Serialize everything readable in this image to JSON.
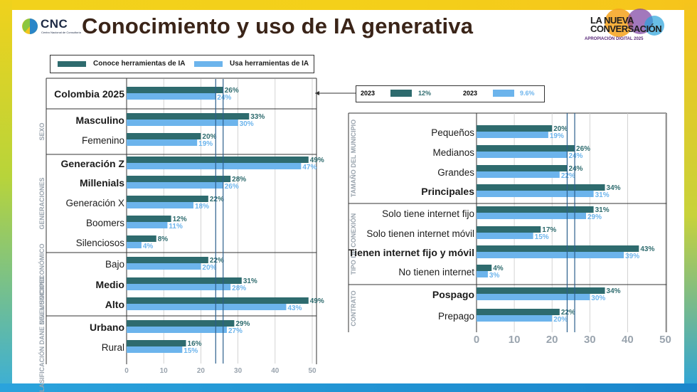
{
  "header": {
    "logo_text": "CNC",
    "logo_sub": "Centro Nacional de Consultoría",
    "title": "Conocimiento y uso de IA generativa",
    "badge_line1": "LA NUEVA",
    "badge_line2": "CONVERSACIÓN",
    "badge_line3": "APROPIACIÓN DIGITAL 2025"
  },
  "legend": {
    "series1": "Conoce herramientas de IA",
    "series2": "Usa herramientas de IA"
  },
  "reference": {
    "year1": "2023",
    "val1": "12%",
    "year2": "2023",
    "val2": "9.6%"
  },
  "colors": {
    "dark": "#2e6b6e",
    "light": "#6cb4ec",
    "ref_line": "#2b5f8c"
  },
  "chart_data": [
    {
      "type": "bar",
      "orientation": "horizontal",
      "xlim": [
        0,
        50
      ],
      "xticks": [
        "0",
        "10",
        "20",
        "30",
        "40",
        "50"
      ],
      "reference_lines": [
        24,
        26
      ],
      "series": [
        {
          "name": "Conoce herramientas de IA"
        },
        {
          "name": "Usa herramientas de IA"
        }
      ],
      "groups": [
        {
          "label": "",
          "rows": [
            {
              "label": "Colombia 2025",
              "bold": true,
              "v1": 26,
              "v2": 24
            }
          ]
        },
        {
          "label": "SEXO",
          "rows": [
            {
              "label": "Masculino",
              "bold": true,
              "v1": 33,
              "v2": 30
            },
            {
              "label": "Femenino",
              "bold": false,
              "v1": 20,
              "v2": 19
            }
          ]
        },
        {
          "label": "GENERACIONES",
          "rows": [
            {
              "label": "Generación Z",
              "bold": true,
              "v1": 49,
              "v2": 47
            },
            {
              "label": "Millenials",
              "bold": true,
              "v1": 28,
              "v2": 26
            },
            {
              "label": "Generación X",
              "bold": false,
              "v1": 22,
              "v2": 18
            },
            {
              "label": "Boomers",
              "bold": false,
              "v1": 12,
              "v2": 11
            },
            {
              "label": "Silenciosos",
              "bold": false,
              "v1": 8,
              "v2": 4
            }
          ]
        },
        {
          "label": "NIVEL SOCIOECONÓMICO",
          "rows": [
            {
              "label": "Bajo",
              "bold": false,
              "v1": 22,
              "v2": 20
            },
            {
              "label": "Medio",
              "bold": true,
              "v1": 31,
              "v2": 28
            },
            {
              "label": "Alto",
              "bold": true,
              "v1": 49,
              "v2": 43
            }
          ]
        },
        {
          "label": "CLASIFICACIÓN DANE DEL MUNICIPIO",
          "rows": [
            {
              "label": "Urbano",
              "bold": true,
              "v1": 29,
              "v2": 27
            },
            {
              "label": "Rural",
              "bold": false,
              "v1": 16,
              "v2": 15
            }
          ]
        }
      ]
    },
    {
      "type": "bar",
      "orientation": "horizontal",
      "xlim": [
        0,
        50
      ],
      "xticks": [
        "0",
        "10",
        "20",
        "30",
        "40",
        "50"
      ],
      "reference_lines": [
        24,
        26
      ],
      "series": [
        {
          "name": "Conoce herramientas de IA"
        },
        {
          "name": "Usa herramientas de IA"
        }
      ],
      "groups": [
        {
          "label": "TAMAÑO DEL MUNICIPIO",
          "rows": [
            {
              "label": "Pequeños",
              "bold": false,
              "v1": 20,
              "v2": 19
            },
            {
              "label": "Medianos",
              "bold": false,
              "v1": 26,
              "v2": 24
            },
            {
              "label": "Grandes",
              "bold": false,
              "v1": 24,
              "v2": 22
            },
            {
              "label": "Principales",
              "bold": true,
              "v1": 34,
              "v2": 31
            }
          ]
        },
        {
          "label": "TIPO DE CONEXIÓN",
          "rows": [
            {
              "label": "Solo tiene internet fijo",
              "bold": false,
              "v1": 31,
              "v2": 29
            },
            {
              "label": "Solo tienen internet móvil",
              "bold": false,
              "v1": 17,
              "v2": 15
            },
            {
              "label": "Tienen internet fijo y móvil",
              "bold": true,
              "v1": 43,
              "v2": 39
            },
            {
              "label": "No tienen internet",
              "bold": false,
              "v1": 4,
              "v2": 3
            }
          ]
        },
        {
          "label": "CONTRATO",
          "rows": [
            {
              "label": "Pospago",
              "bold": true,
              "v1": 34,
              "v2": 30
            },
            {
              "label": "Prepago",
              "bold": false,
              "v1": 22,
              "v2": 20
            }
          ]
        }
      ]
    }
  ]
}
